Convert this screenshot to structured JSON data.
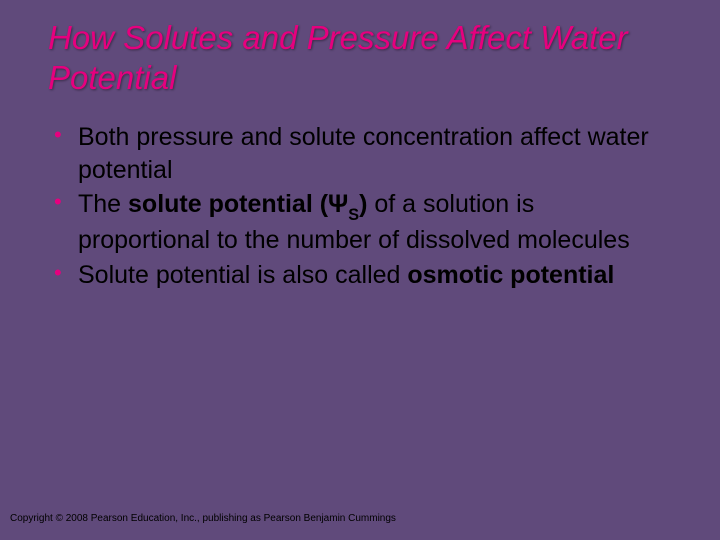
{
  "title": "How Solutes and Pressure Affect Water Potential",
  "bullets": {
    "b0_text": "Both pressure and solute concentration affect water potential",
    "b1_pre": "The ",
    "b1_bold1": "solute potential (Ψ",
    "b1_sub": "S",
    "b1_bold2": ")",
    "b1_post": " of a solution is proportional to the number of dissolved molecules",
    "b2_pre": "Solute potential is also called ",
    "b2_bold": "osmotic potential"
  },
  "copyright": "Copyright © 2008 Pearson Education, Inc., publishing as Pearson Benjamin Cummings",
  "colors": {
    "background": "#604a7b",
    "accent": "#e6007e",
    "text": "#000000"
  }
}
